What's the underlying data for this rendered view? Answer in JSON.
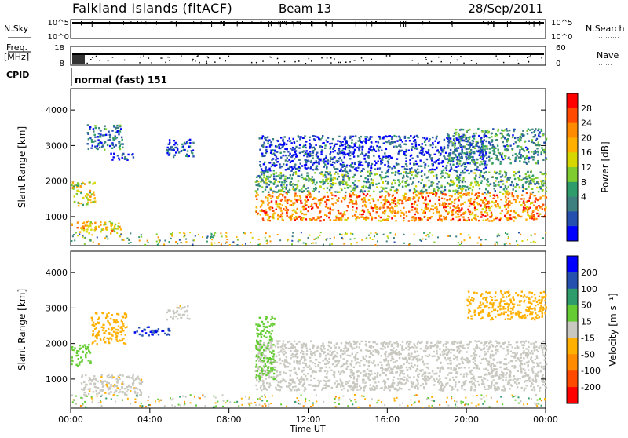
{
  "header": {
    "title": "Falkland Islands (fitACF)",
    "beam": "Beam 13",
    "date": "28/Sep/2011"
  },
  "status_panels": {
    "nsky_label": "N.Sky",
    "nsky_ticks": [
      "10^5",
      "10^0"
    ],
    "nsearch_label": "N.Search",
    "nsearch_ticks": [
      "10^5",
      "10^0"
    ],
    "freq_label": "Freq.",
    "freq_unit": "[MHz]",
    "freq_ticks": [
      "18",
      "8"
    ],
    "nave_label": "Nave",
    "nave_ticks": [
      "60",
      "0"
    ],
    "cpid_label": "CPID",
    "cpid_value": "normal (fast) 151"
  },
  "chart_data": [
    {
      "type": "heatmap",
      "name": "power",
      "ylabel": "Slant Range [km]",
      "yticks": [
        "4000",
        "3000",
        "2000",
        "1000"
      ],
      "ylim": [
        180,
        4600
      ],
      "xlim": [
        0,
        24
      ],
      "colorbar_label": "Power [dB]",
      "colorbar_ticks": [
        "28",
        "24",
        "20",
        "16",
        "12",
        "8",
        "4"
      ],
      "colorbar_colors": [
        "#ff0000",
        "#ff4a00",
        "#ff8c00",
        "#ffb000",
        "#d6d600",
        "#7ecc30",
        "#2e9d6b",
        "#3e7f80",
        "#2550b0",
        "#0000ff"
      ],
      "regions": [
        {
          "t0": 0.0,
          "t1": 2.5,
          "r0": 550,
          "r1": 900,
          "value": 20
        },
        {
          "t0": 0.0,
          "t1": 1.2,
          "r0": 1300,
          "r1": 2000,
          "value": 18
        },
        {
          "t0": 0.8,
          "t1": 2.6,
          "r0": 2900,
          "r1": 3600,
          "value": 8
        },
        {
          "t0": 2.0,
          "t1": 3.2,
          "r0": 2600,
          "r1": 2800,
          "value": 6
        },
        {
          "t0": 4.8,
          "t1": 6.2,
          "r0": 2700,
          "r1": 3200,
          "value": 6
        },
        {
          "t0": 9.3,
          "t1": 24.0,
          "r0": 900,
          "r1": 1700,
          "value": 24
        },
        {
          "t0": 9.3,
          "t1": 24.0,
          "r0": 1700,
          "r1": 2300,
          "value": 12
        },
        {
          "t0": 9.5,
          "t1": 21.0,
          "r0": 2300,
          "r1": 3300,
          "value": 5
        },
        {
          "t0": 19.0,
          "t1": 24.0,
          "r0": 2500,
          "r1": 3500,
          "value": 10
        }
      ]
    },
    {
      "type": "heatmap",
      "name": "velocity",
      "ylabel": "Slant Range [km]",
      "yticks": [
        "4000",
        "3000",
        "2000",
        "1000"
      ],
      "ylim": [
        180,
        4600
      ],
      "xlim": [
        0,
        24
      ],
      "xticks": [
        "00:00",
        "04:00",
        "08:00",
        "12:00",
        "16:00",
        "20:00",
        "00:00"
      ],
      "xlabel": "Time UT",
      "colorbar_label": "Velocity [m s⁻¹]",
      "colorbar_ticks": [
        "200",
        "100",
        "50",
        "15",
        "-15",
        "-50",
        "-100",
        "-200"
      ],
      "colorbar_colors": [
        "#0000ff",
        "#2550b0",
        "#2e9d6b",
        "#66cc33",
        "#c8c8c0",
        "#ffb000",
        "#ff8c00",
        "#ff4a00",
        "#ff0000"
      ],
      "regions": [
        {
          "t0": 0.5,
          "t1": 3.6,
          "r0": 550,
          "r1": 1150,
          "value": -10
        },
        {
          "t0": 0.0,
          "t1": 1.0,
          "r0": 1400,
          "r1": 2000,
          "value": 30
        },
        {
          "t0": 1.0,
          "t1": 2.8,
          "r0": 2000,
          "r1": 2900,
          "value": -40
        },
        {
          "t0": 3.2,
          "t1": 5.0,
          "r0": 2250,
          "r1": 2500,
          "value": 200
        },
        {
          "t0": 4.8,
          "t1": 6.0,
          "r0": 2700,
          "r1": 3100,
          "value": -10
        },
        {
          "t0": 9.3,
          "t1": 24.0,
          "r0": 700,
          "r1": 2100,
          "value": -5
        },
        {
          "t0": 9.3,
          "t1": 10.3,
          "r0": 1000,
          "r1": 2800,
          "value": 30
        },
        {
          "t0": 20.0,
          "t1": 24.0,
          "r0": 2700,
          "r1": 3500,
          "value": -40
        }
      ]
    }
  ]
}
